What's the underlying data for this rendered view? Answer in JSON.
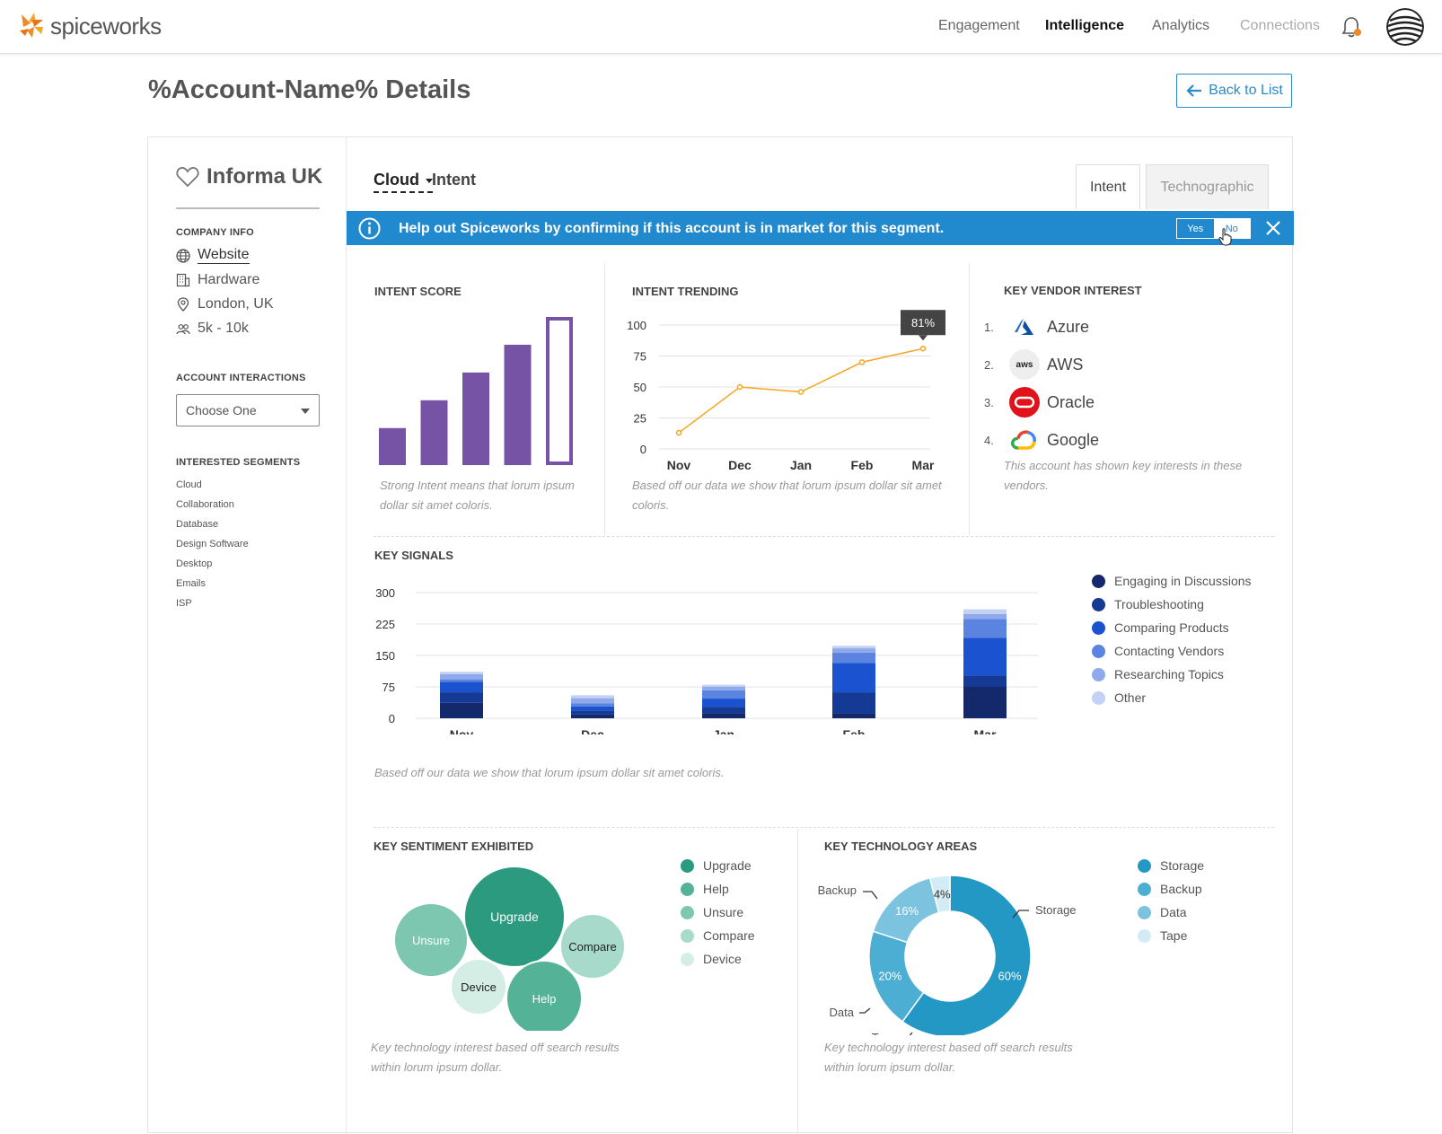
{
  "header": {
    "logo_text": "spiceworks",
    "nav": [
      "Engagement",
      "Intelligence",
      "Analytics",
      "Connections"
    ],
    "active_nav": "Intelligence"
  },
  "page": {
    "title": "%Account-Name% Details",
    "back_label": "Back to List"
  },
  "account": {
    "name": "Informa UK",
    "company_info_heading": "COMPANY INFO",
    "website": "Website",
    "industry": "Hardware",
    "location": "London, UK",
    "size": "5k - 10k",
    "interactions_heading": "ACCOUNT INTERACTIONS",
    "interactions_placeholder": "Choose One",
    "segments_heading": "INTERESTED SEGMENTS",
    "segments": [
      "Cloud",
      "Collaboration",
      "Database",
      "Design Software",
      "Desktop",
      "Emails",
      "ISP"
    ]
  },
  "segment_header": {
    "segment": "Cloud",
    "label": "Intent",
    "tabs": [
      "Intent",
      "Technographic"
    ]
  },
  "banner": {
    "text": "Help out Spiceworks by confirming if this account is in market for this segment.",
    "yes": "Yes",
    "no": "No"
  },
  "intent_score": {
    "heading": "INTENT SCORE",
    "note": "Strong Intent means that lorum ipsum dollar sit amet coloris."
  },
  "intent_trending": {
    "heading": "INTENT TRENDING",
    "note": "Based off our data we show that lorum ipsum dollar sit amet coloris.",
    "tooltip": "81%"
  },
  "vendors": {
    "heading": "KEY VENDOR INTEREST",
    "items": [
      {
        "num": "1.",
        "name": "Azure",
        "icon": "azure-icon"
      },
      {
        "num": "2.",
        "name": "AWS",
        "icon": "aws-icon"
      },
      {
        "num": "3.",
        "name": "Oracle",
        "icon": "oracle-icon"
      },
      {
        "num": "4.",
        "name": "Google",
        "icon": "google-cloud-icon"
      }
    ],
    "aws_icon_text": "aws",
    "note": "This account has shown key interests in these vendors."
  },
  "key_signals": {
    "heading": "KEY SIGNALS",
    "note": "Based off our data we show that lorum ipsum dollar sit amet coloris."
  },
  "sentiment": {
    "heading": "KEY SENTIMENT EXHIBITED",
    "note": "Key technology interest based off search results within lorum ipsum dollar."
  },
  "tech_areas": {
    "heading": "KEY TECHNOLOGY AREAS",
    "note": "Key technology interest based off search results within lorum ipsum dollar."
  },
  "colors": {
    "accent": "#2189cd",
    "purple": "#7653a5",
    "orange": "#f5a623",
    "signal_colors": [
      "#13296b",
      "#153a95",
      "#1b52d0",
      "#5a84e0",
      "#8fa9eb",
      "#c3d1f4"
    ],
    "sentiment_colors": [
      "#2b9a7e",
      "#54b297",
      "#7dc6b0",
      "#a8dacb",
      "#d4ede5"
    ],
    "tech_colors": [
      "#2398c4",
      "#4caed2",
      "#7cc3df",
      "#d3ebf5"
    ]
  },
  "chart_data": [
    {
      "type": "bar",
      "id": "intent-score",
      "categories": [
        "1",
        "2",
        "3",
        "4",
        "5"
      ],
      "values": [
        1,
        2,
        3,
        4,
        5
      ]
    },
    {
      "type": "line",
      "id": "intent-trending",
      "x": [
        "Nov",
        "Dec",
        "Jan",
        "Feb",
        "Mar"
      ],
      "values": [
        13,
        50,
        46,
        70,
        81
      ],
      "y_ticks": [
        "0",
        "25",
        "50",
        "75",
        "100"
      ],
      "ylim": [
        0,
        100
      ]
    },
    {
      "type": "bar",
      "id": "key-signals",
      "stacked": true,
      "categories": [
        "Nov",
        "Dec",
        "Jan",
        "Feb",
        "Mar"
      ],
      "y_ticks": [
        "0",
        "75",
        "150",
        "225",
        "300"
      ],
      "ylim": [
        0,
        300
      ],
      "series": [
        {
          "name": "Engaging in Discussions",
          "values": [
            37,
            10,
            12,
            12,
            75
          ]
        },
        {
          "name": "Troubleshooting",
          "values": [
            25,
            8,
            15,
            50,
            27
          ]
        },
        {
          "name": "Comparing Products",
          "values": [
            25,
            10,
            20,
            70,
            90
          ]
        },
        {
          "name": "Contacting Vendors",
          "values": [
            6,
            8,
            20,
            25,
            45
          ]
        },
        {
          "name": "Researching Topics",
          "values": [
            12,
            12,
            8,
            10,
            12
          ]
        },
        {
          "name": "Other",
          "values": [
            6,
            7,
            5,
            6,
            11
          ]
        }
      ]
    },
    {
      "type": "scatter",
      "id": "key-sentiment",
      "series": [
        {
          "name": "Upgrade"
        },
        {
          "name": "Help"
        },
        {
          "name": "Unsure"
        },
        {
          "name": "Compare"
        },
        {
          "name": "Device"
        }
      ]
    },
    {
      "type": "pie",
      "id": "key-technology-areas",
      "categories": [
        "Storage",
        "Backup",
        "Data",
        "Tape"
      ],
      "values": [
        60,
        20,
        16,
        4
      ],
      "labels": [
        "60%",
        "20%",
        "16%",
        "4%"
      ]
    }
  ]
}
